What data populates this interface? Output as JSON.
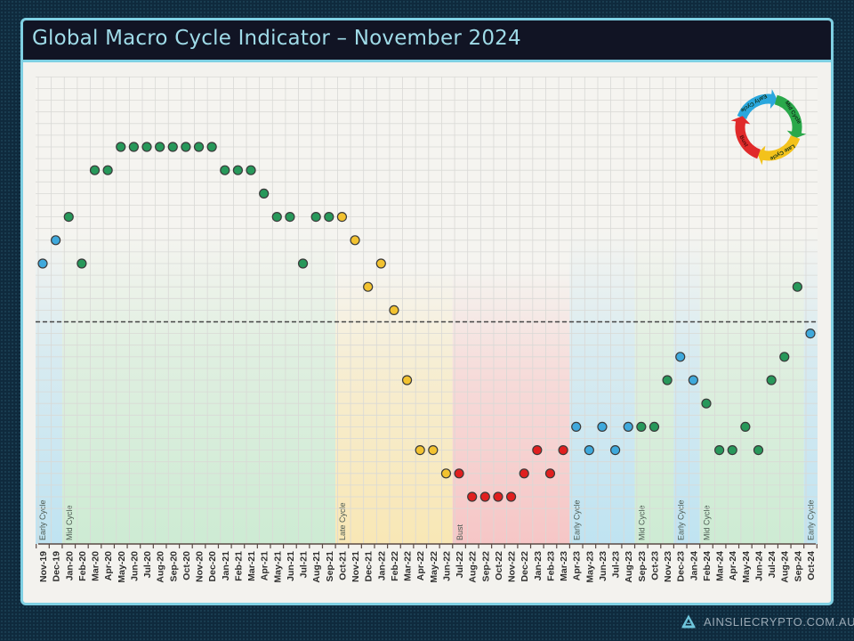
{
  "header": {
    "title": "Global Macro Cycle Indicator – November 2024"
  },
  "footer": {
    "brand": "AINSLIECRYPTO.COM.AU",
    "logo_icon": "ainslie-a-logo-icon"
  },
  "legend_cycle": {
    "segments": [
      {
        "label": "Early Cycle",
        "color": "#2aa7dd"
      },
      {
        "label": "Mid Cycle",
        "color": "#2aa84a"
      },
      {
        "label": "Late Cycle",
        "color": "#f3c21b"
      },
      {
        "label": "Bust",
        "color": "#e02a2a"
      }
    ]
  },
  "colors": {
    "early": "#3fa9dc",
    "mid": "#27985a",
    "late": "#f2c230",
    "bust": "#e01f1f",
    "band_early": "#bfe3f1",
    "band_mid": "#cdebd3",
    "band_late": "#f8e7b5",
    "band_bust": "#f6c6c6",
    "dashed_line": "#444444"
  },
  "chart_data": {
    "type": "scatter",
    "title": "Global Macro Cycle Indicator – November 2024",
    "xlabel": "",
    "ylabel": "",
    "grid": true,
    "y_levels_note": "Unlabeled y-axis; values are grid-step levels (0 = lowest row)",
    "ylim": [
      0,
      17
    ],
    "threshold_line": 7.5,
    "categories": [
      "Nov-19",
      "Dec-19",
      "Jan-20",
      "Feb-20",
      "Mar-20",
      "Apr-20",
      "May-20",
      "Jun-20",
      "Jul-20",
      "Aug-20",
      "Sep-20",
      "Oct-20",
      "Nov-20",
      "Dec-20",
      "Jan-21",
      "Feb-21",
      "Mar-21",
      "Apr-21",
      "May-21",
      "Jun-21",
      "Jul-21",
      "Aug-21",
      "Sep-21",
      "Oct-21",
      "Nov-21",
      "Dec-21",
      "Jan-22",
      "Feb-22",
      "Mar-22",
      "Apr-22",
      "May-22",
      "Jun-22",
      "Jul-22",
      "Aug-22",
      "Sep-22",
      "Oct-22",
      "Nov-22",
      "Dec-22",
      "Jan-23",
      "Feb-23",
      "Mar-23",
      "Apr-23",
      "May-23",
      "Jun-23",
      "Jul-23",
      "Aug-23",
      "Sep-23",
      "Oct-23",
      "Nov-23",
      "Dec-23",
      "Jan-24",
      "Feb-24",
      "Mar-24",
      "Apr-24",
      "May-24",
      "Jun-24",
      "Jul-24",
      "Aug-24",
      "Sep-24",
      "Oct-24"
    ],
    "values": [
      10,
      11,
      12,
      10,
      14,
      14,
      15,
      15,
      15,
      15,
      15,
      15,
      15,
      15,
      14,
      14,
      14,
      13,
      12,
      12,
      10,
      12,
      12,
      12,
      11,
      9,
      10,
      8,
      5,
      2,
      2,
      1,
      1,
      0,
      0,
      0,
      0,
      1,
      2,
      1,
      2,
      3,
      2,
      3,
      2,
      3,
      3,
      3,
      5,
      6,
      5,
      4,
      2,
      2,
      3,
      2,
      5,
      6,
      9,
      7
    ],
    "phase": [
      "early",
      "early",
      "mid",
      "mid",
      "mid",
      "mid",
      "mid",
      "mid",
      "mid",
      "mid",
      "mid",
      "mid",
      "mid",
      "mid",
      "mid",
      "mid",
      "mid",
      "mid",
      "mid",
      "mid",
      "mid",
      "mid",
      "mid",
      "late",
      "late",
      "late",
      "late",
      "late",
      "late",
      "late",
      "late",
      "late",
      "bust",
      "bust",
      "bust",
      "bust",
      "bust",
      "bust",
      "bust",
      "bust",
      "bust",
      "early",
      "early",
      "early",
      "early",
      "early",
      "mid",
      "mid",
      "mid",
      "early",
      "early",
      "mid",
      "mid",
      "mid",
      "mid",
      "mid",
      "mid",
      "mid",
      "mid",
      "early"
    ],
    "bands": [
      {
        "label": "Early Cycle",
        "phase": "early",
        "start": 0,
        "end": 1
      },
      {
        "label": "Mid Cycle",
        "phase": "mid",
        "start": 2,
        "end": 22
      },
      {
        "label": "Late Cycle",
        "phase": "late",
        "start": 23,
        "end": 31
      },
      {
        "label": "Bust",
        "phase": "bust",
        "start": 32,
        "end": 40
      },
      {
        "label": "Early Cycle",
        "phase": "early",
        "start": 41,
        "end": 45
      },
      {
        "label": "Mid Cycle",
        "phase": "mid",
        "start": 46,
        "end": 48
      },
      {
        "label": "Early Cycle",
        "phase": "early",
        "start": 49,
        "end": 50
      },
      {
        "label": "Mid Cycle",
        "phase": "mid",
        "start": 51,
        "end": 58
      },
      {
        "label": "Early Cycle",
        "phase": "early",
        "start": 59,
        "end": 59
      }
    ],
    "legend": [
      "Early Cycle",
      "Mid Cycle",
      "Late Cycle",
      "Bust"
    ],
    "legend_position": "top-right"
  }
}
